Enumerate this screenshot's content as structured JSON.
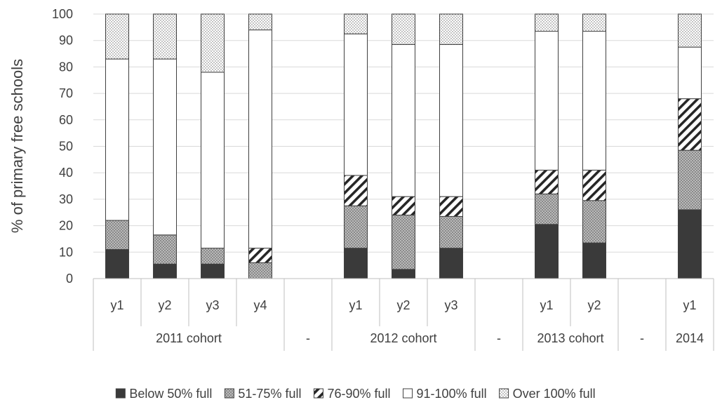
{
  "chart_data": {
    "type": "bar",
    "stacked": true,
    "ylabel": "% of primary free schools",
    "ylim": [
      0,
      100
    ],
    "yticks": [
      0,
      10,
      20,
      30,
      40,
      50,
      60,
      70,
      80,
      90,
      100
    ],
    "grid": true,
    "legend_position": "bottom",
    "categories": [
      "y1",
      "y2",
      "y3",
      "y4",
      "",
      "y1",
      "y2",
      "y3",
      "",
      "y1",
      "y2",
      "",
      "y1"
    ],
    "groups": [
      {
        "label": "2011 cohort",
        "span": 4
      },
      {
        "label": "-",
        "span": 1
      },
      {
        "label": "2012 cohort",
        "span": 3
      },
      {
        "label": "-",
        "span": 1
      },
      {
        "label": "2013 cohort",
        "span": 2
      },
      {
        "label": "-",
        "span": 1
      },
      {
        "label": "2014",
        "span": 1
      }
    ],
    "series": [
      {
        "name": "Below 50% full",
        "pattern": "solid-dark",
        "values": [
          11,
          5.5,
          5.5,
          0,
          null,
          11.5,
          3.5,
          11.5,
          null,
          20.5,
          13.5,
          null,
          26
        ]
      },
      {
        "name": "51-75% full",
        "pattern": "dots-grey",
        "values": [
          11,
          11,
          6,
          6,
          null,
          16,
          20.5,
          12,
          null,
          11.5,
          16,
          null,
          22.5
        ]
      },
      {
        "name": "76-90% full",
        "pattern": "diagonal-stripes",
        "values": [
          0,
          0,
          0,
          5.5,
          null,
          11.5,
          7,
          7.5,
          null,
          9,
          11.5,
          null,
          19.5
        ]
      },
      {
        "name": "91-100% full",
        "pattern": "white",
        "values": [
          61,
          66.5,
          66.5,
          82.5,
          null,
          53.5,
          57.5,
          57.5,
          null,
          52.5,
          52.5,
          null,
          19.5
        ]
      },
      {
        "name": "Over 100% full",
        "pattern": "fine-dots",
        "values": [
          17,
          17,
          22,
          6,
          null,
          7.5,
          11.5,
          11.5,
          null,
          6.5,
          6.5,
          null,
          12.5
        ]
      }
    ]
  }
}
